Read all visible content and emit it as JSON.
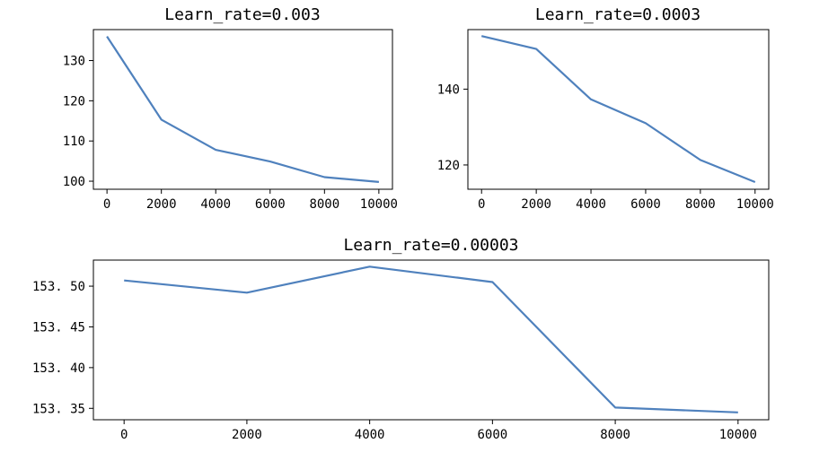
{
  "chart_data": [
    {
      "type": "line",
      "title": "Learn_rate=0.003",
      "x": [
        0,
        2000,
        4000,
        6000,
        8000,
        10000
      ],
      "series": [
        {
          "values": [
            136,
            115.3,
            107.8,
            104.9,
            101.0,
            99.8
          ]
        }
      ],
      "xticks": [
        0,
        2000,
        4000,
        6000,
        8000,
        10000
      ],
      "xtick_labels": [
        "0",
        "2000",
        "4000",
        "6000",
        "8000",
        "10000"
      ],
      "yticks": [
        100,
        110,
        120,
        130
      ],
      "ytick_labels": [
        "100",
        "110",
        "120",
        "130"
      ],
      "xlim": [
        -500,
        10500
      ],
      "ylim": [
        98.0,
        137.7
      ],
      "color": "#4f81bd",
      "grid": false
    },
    {
      "type": "line",
      "title": "Learn_rate=0.0003",
      "x": [
        0,
        2000,
        4000,
        6000,
        8000,
        10000
      ],
      "series": [
        {
          "values": [
            154.0,
            150.6,
            137.3,
            131.0,
            121.3,
            115.5
          ]
        }
      ],
      "xticks": [
        0,
        2000,
        4000,
        6000,
        8000,
        10000
      ],
      "xtick_labels": [
        "0",
        "2000",
        "4000",
        "6000",
        "8000",
        "10000"
      ],
      "yticks": [
        120,
        140
      ],
      "ytick_labels": [
        "120",
        "140"
      ],
      "xlim": [
        -500,
        10500
      ],
      "ylim": [
        113.6,
        155.7
      ],
      "color": "#4f81bd",
      "grid": false
    },
    {
      "type": "line",
      "title": "Learn_rate=0.00003",
      "x": [
        0,
        2000,
        4000,
        6000,
        8000,
        10000
      ],
      "series": [
        {
          "values": [
            153.507,
            153.492,
            153.524,
            153.505,
            153.351,
            153.345
          ]
        }
      ],
      "xticks": [
        0,
        2000,
        4000,
        6000,
        8000,
        10000
      ],
      "xtick_labels": [
        "0",
        "2000",
        "4000",
        "6000",
        "8000",
        "10000"
      ],
      "yticks": [
        153.35,
        153.4,
        153.45,
        153.5
      ],
      "ytick_labels": [
        "153. 35",
        "153. 40",
        "153. 45",
        "153. 50"
      ],
      "xlim": [
        -500,
        10500
      ],
      "ylim": [
        153.336,
        153.532
      ],
      "color": "#4f81bd",
      "grid": false
    }
  ]
}
